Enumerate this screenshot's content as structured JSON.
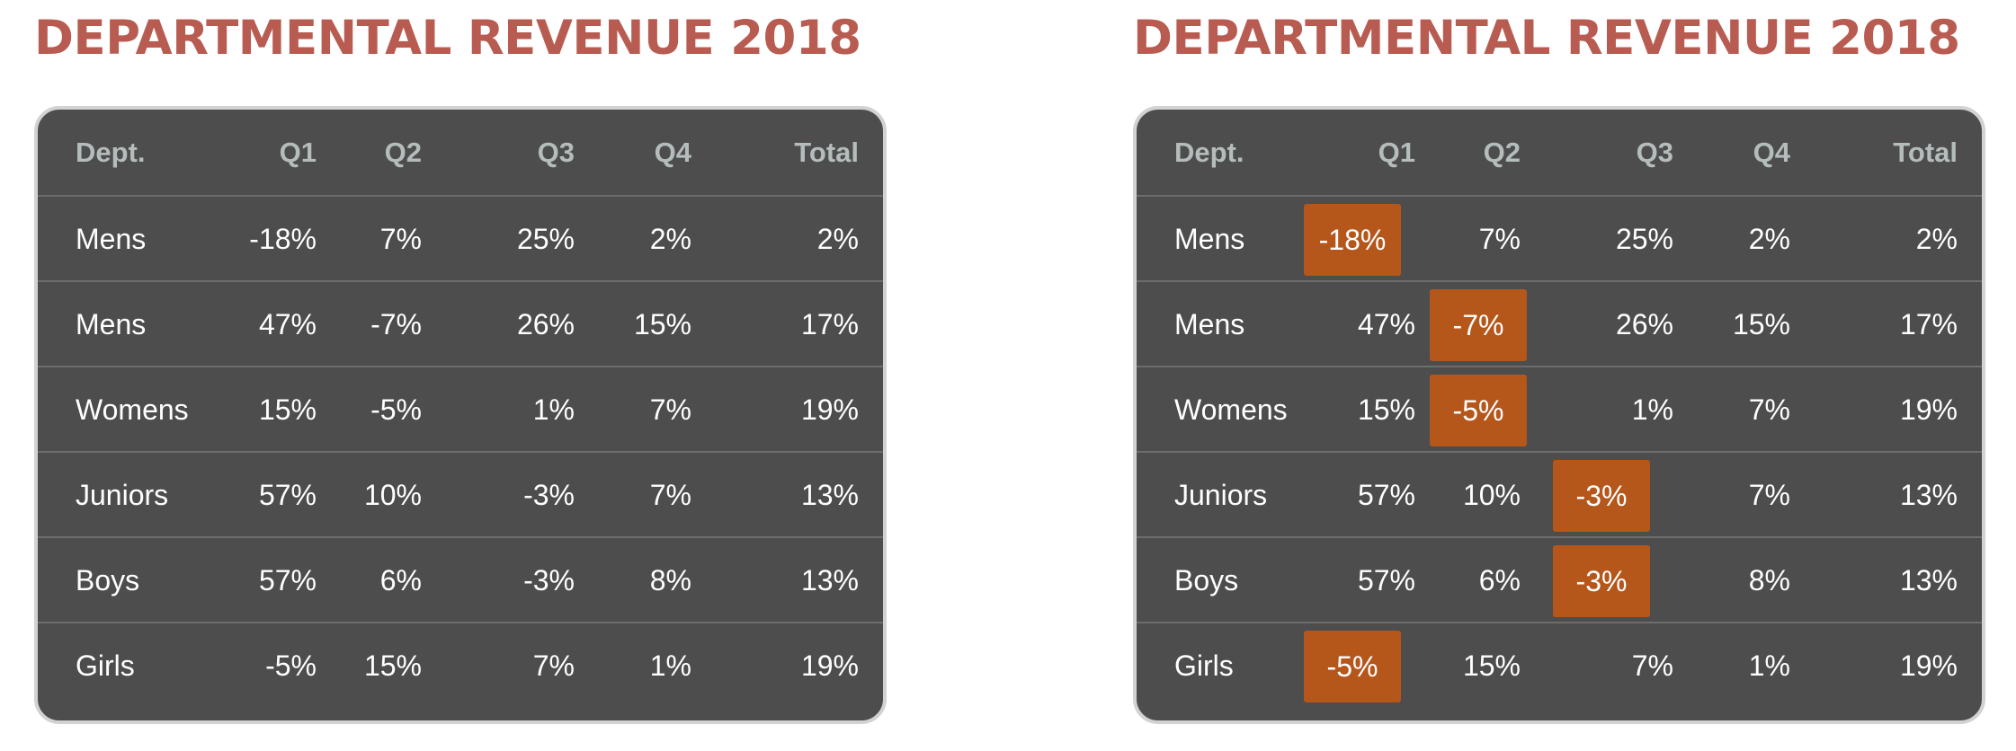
{
  "chart_data": [
    {
      "type": "table",
      "title": "DEPARTMENTAL REVENUE 2018",
      "columns": [
        "Dept.",
        "Q1",
        "Q2",
        "Q3",
        "Q4",
        "Total"
      ],
      "rows": [
        [
          "Mens",
          "-18%",
          "7%",
          "25%",
          "2%",
          "2%"
        ],
        [
          "Mens",
          "47%",
          "-7%",
          "26%",
          "15%",
          "17%"
        ],
        [
          "Womens",
          "15%",
          "-5%",
          "1%",
          "7%",
          "19%"
        ],
        [
          "Juniors",
          "57%",
          "10%",
          "-3%",
          "7%",
          "13%"
        ],
        [
          "Boys",
          "57%",
          "6%",
          "-3%",
          "8%",
          "13%"
        ],
        [
          "Girls",
          "-5%",
          "15%",
          "7%",
          "1%",
          "19%"
        ]
      ],
      "highlight_negatives": false
    },
    {
      "type": "table",
      "title": "DEPARTMENTAL REVENUE 2018",
      "columns": [
        "Dept.",
        "Q1",
        "Q2",
        "Q3",
        "Q4",
        "Total"
      ],
      "rows": [
        [
          "Mens",
          "-18%",
          "7%",
          "25%",
          "2%",
          "2%"
        ],
        [
          "Mens",
          "47%",
          "-7%",
          "26%",
          "15%",
          "17%"
        ],
        [
          "Womens",
          "15%",
          "-5%",
          "1%",
          "7%",
          "19%"
        ],
        [
          "Juniors",
          "57%",
          "10%",
          "-3%",
          "7%",
          "13%"
        ],
        [
          "Boys",
          "57%",
          "6%",
          "-3%",
          "8%",
          "13%"
        ],
        [
          "Girls",
          "-5%",
          "15%",
          "7%",
          "1%",
          "19%"
        ]
      ],
      "highlight_negatives": true
    }
  ],
  "colors": {
    "title": "#b85c52",
    "table_bg": "#4d4d4d",
    "header_text": "#b4bcbc",
    "cell_text": "#ffffff",
    "highlight": "#b5561b"
  }
}
